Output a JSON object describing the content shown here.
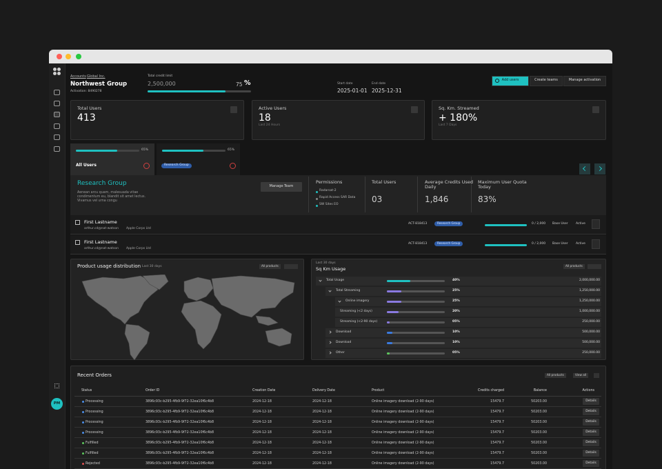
{
  "sidebar": {
    "avatar": "PM"
  },
  "header": {
    "breadcrumb": [
      "Accounts",
      "Global Inc."
    ],
    "group": "Northwest Group",
    "activation": "Activation: 8490278",
    "credit_label": "Total credit limit",
    "credit_value": "2,500,000",
    "credit_used": 75,
    "percent_sign": "%",
    "start_label": "Start date",
    "start": "2025-01-01",
    "end_label": "End date",
    "end": "2025-12-31",
    "buttons": [
      "Add users",
      "Create teams",
      "Manage activation"
    ]
  },
  "cards": [
    {
      "label": "Total Users",
      "value": "413"
    },
    {
      "label": "Active Users",
      "value": "18",
      "note": "Last 24 Hours"
    },
    {
      "label": "Sq. Km. Streamed",
      "value": "+ 180%",
      "note": "Last 7 Days"
    }
  ],
  "tabs": [
    {
      "name": "All Users",
      "progress": {
        "value": 65,
        "label": "65%"
      }
    },
    {
      "name": "Research Group",
      "progress": {
        "value": 65,
        "label": "65%"
      }
    }
  ],
  "team": {
    "name": "Research Group",
    "description": "Aenean arcu quam, malesuada vitae condimentum eu, blandit sit amet lectus. Vivamus vel urna congu",
    "button": "Manage Team",
    "permissions_label": "Permissions",
    "permissions": [
      "Radarsat-2",
      "Rapid Access SAR Data",
      "SW Sites EO"
    ],
    "stats": [
      {
        "label": "Total Users",
        "value": "03"
      },
      {
        "label": "Average Credits Used Daily",
        "value": "1,846"
      },
      {
        "label": "Maximum User Quota Today",
        "value": "83%"
      }
    ]
  },
  "users": [
    {
      "name": "First Lastname",
      "email": "arthur.cd@nat-watson",
      "company": "Apple Corps Ltd",
      "account": "ACT-818413",
      "team": "Research Group",
      "quota": "0 / 2,000",
      "role": "Base User",
      "status": "Active"
    },
    {
      "name": "First Lastname",
      "email": "arthur.cd@nat-watson",
      "company": "Apple Corps Ltd",
      "account": "ACT-818413",
      "team": "Research Group",
      "quota": "0 / 2,000",
      "role": "Base User",
      "status": "Active"
    }
  ],
  "usage_map": {
    "title": "Product usage distribution",
    "period": "Last 30 days",
    "filter": "All products"
  },
  "sqkm": {
    "period": "Last 30 days",
    "title": "Sq Km Usage",
    "filter": "All products",
    "rows": [
      {
        "name": "Total Usage",
        "color": "#1fc1c1",
        "percent": {
          "value": 40,
          "label": "40%"
        },
        "amount": "2,000,000.00"
      },
      {
        "name": "Total Streaming",
        "color": "#8a7ae0",
        "percent": {
          "value": 25,
          "label": "25%"
        },
        "amount": "1,250,000.00"
      },
      {
        "name": "Online imagery",
        "color": "#8a7ae0",
        "percent": {
          "value": 25,
          "label": "25%"
        },
        "amount": "1,250,000.00"
      },
      {
        "name": "Streaming (<2 days)",
        "color": "#8a7ae0",
        "percent": {
          "value": 20,
          "label": "20%"
        },
        "amount": "1,000,000.00"
      },
      {
        "name": "Streaming (<2-90 days)",
        "color": "#8a7ae0",
        "percent": {
          "value": 5,
          "label": "05%"
        },
        "amount": "250,000.00"
      },
      {
        "name": "Download",
        "color": "#3a7ae0",
        "percent": {
          "value": 10,
          "label": "10%"
        },
        "amount": "500,000.00"
      },
      {
        "name": "Download",
        "color": "#3a7ae0",
        "percent": {
          "value": 10,
          "label": "10%"
        },
        "amount": "500,000.00"
      },
      {
        "name": "Other",
        "color": "#5cc85c",
        "percent": {
          "value": 5,
          "label": "05%"
        },
        "amount": "250,000.00"
      }
    ]
  },
  "orders": {
    "title": "Recent Orders",
    "filter": "All products",
    "view": "View all",
    "columns": [
      "Status",
      "Order ID",
      "Creation Date",
      "Delivery Date",
      "Product",
      "Credits charged",
      "Balance",
      "Actions"
    ],
    "rows": [
      {
        "status": "Processing",
        "status_color": "#4a8ee8",
        "cells": [
          "3896c93c-b295-4fb9-9f72-32ea10f6c4b8",
          "2024-12-18",
          "2024-12-18",
          "Online imagery download (2-90 days)",
          "15479.7",
          "50203.00",
          "Details"
        ]
      },
      {
        "status": "Processing",
        "status_color": "#4a8ee8",
        "cells": [
          "3896c93c-b295-4fb9-9f72-32ea10f6c4b8",
          "2024-12-18",
          "2024-12-18",
          "Online imagery download (2-90 days)",
          "15479.7",
          "50203.00",
          "Details"
        ]
      },
      {
        "status": "Processing",
        "status_color": "#4a8ee8",
        "cells": [
          "3896c93c-b295-4fb9-9f72-32ea10f6c4b8",
          "2024-12-18",
          "2024-12-18",
          "Online imagery download (2-90 days)",
          "15479.7",
          "50203.00",
          "Details"
        ]
      },
      {
        "status": "Processing",
        "status_color": "#4a8ee8",
        "cells": [
          "3896c93c-b295-4fb9-9f72-32ea10f6c4b8",
          "2024-12-18",
          "2024-12-18",
          "Online imagery download (2-90 days)",
          "15479.7",
          "50203.00",
          "Details"
        ]
      },
      {
        "status": "Fulfilled",
        "status_color": "#5cc85c",
        "cells": [
          "3896c93c-b295-4fb9-9f72-32ea10f6c4b8",
          "2024-12-18",
          "2024-12-18",
          "Online imagery download (2-90 days)",
          "15479.7",
          "50203.00",
          "Details"
        ]
      },
      {
        "status": "Fulfilled",
        "status_color": "#5cc85c",
        "cells": [
          "3896c93c-b295-4fb9-9f72-32ea10f6c4b8",
          "2024-12-18",
          "2024-12-18",
          "Online imagery download (2-90 days)",
          "15479.7",
          "50203.00",
          "Details"
        ]
      },
      {
        "status": "Rejected",
        "status_color": "#e05050",
        "cells": [
          "3896c93c-b295-4fb9-9f72-32ea10f6c4b8",
          "2024-12-18",
          "2024-12-18",
          "Online imagery download (2-90 days)",
          "15479.7",
          "50203.00",
          "Details"
        ]
      }
    ]
  }
}
